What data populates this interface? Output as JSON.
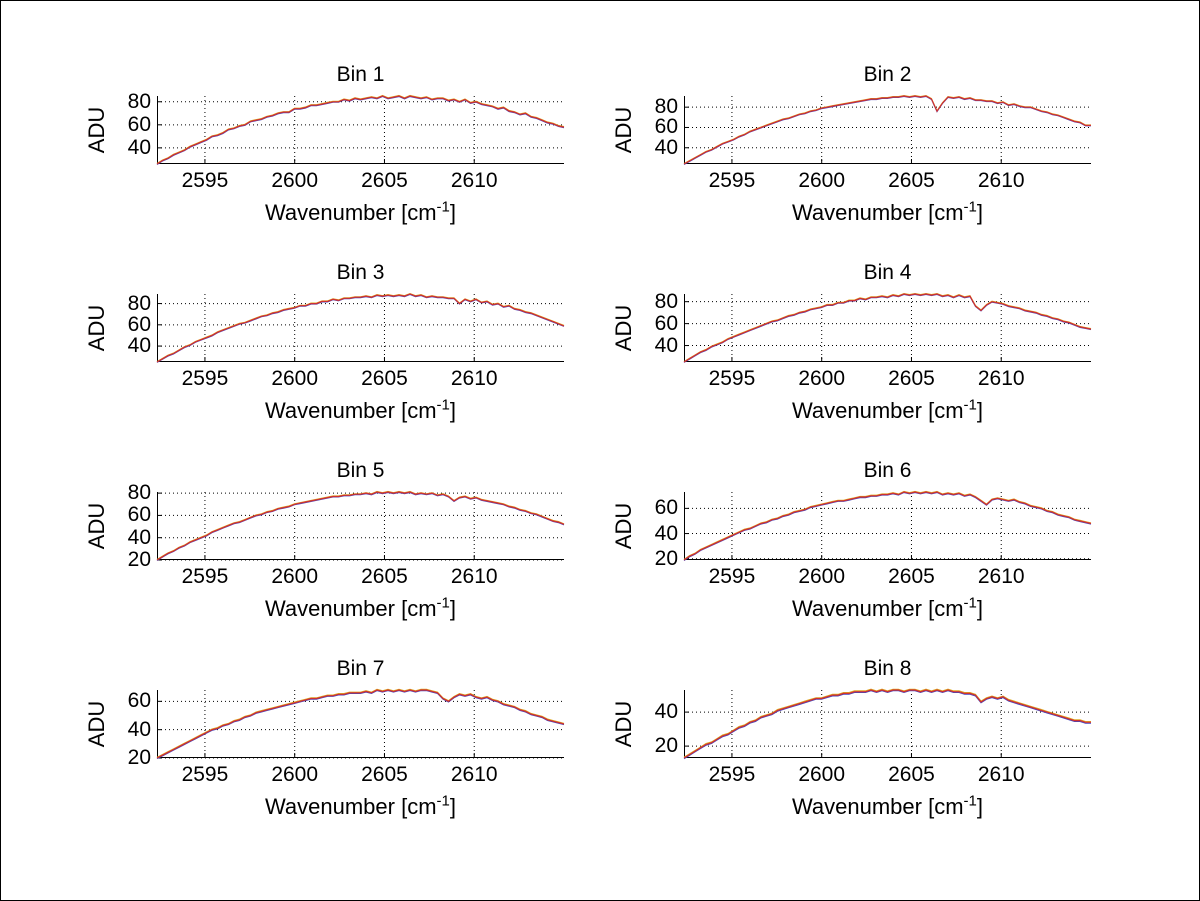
{
  "figure": {
    "ylabel": "ADU",
    "xlabel_base": "Wavenumber [cm",
    "xlabel_exp": "-1",
    "xlabel_end": "]",
    "line_color": "#d03030",
    "underlay_color_yellow": "#ddaa22",
    "underlay_color_blue": "#4444bb",
    "axis_color": "#000000",
    "grid_color": "#000000",
    "background": "#ffffff"
  },
  "chart_data": [
    {
      "type": "line",
      "title": "Bin 1",
      "ylabel": "ADU",
      "xlabel": "Wavenumber [cm-1]",
      "xlim": [
        2592.33,
        2615.0
      ],
      "ylim": [
        26,
        85
      ],
      "xticks": [
        2595,
        2600,
        2605,
        2610
      ],
      "yticks": [
        40,
        60,
        80
      ],
      "x_start": 2592.33,
      "x_end": 2615.0,
      "n_points": 75,
      "grid": true,
      "values": [
        26,
        29,
        31,
        34,
        36,
        38,
        41,
        43,
        45,
        47,
        50,
        51,
        53,
        56,
        57,
        59,
        60,
        63,
        64,
        65,
        67,
        68,
        70,
        71,
        71,
        74,
        74,
        75,
        77,
        77,
        78,
        79,
        80,
        80,
        82,
        81,
        83,
        82,
        83,
        84,
        83,
        85,
        83,
        84,
        85,
        83,
        85,
        84,
        83,
        84,
        82,
        83,
        83,
        81,
        82,
        80,
        82,
        79,
        80,
        78,
        77,
        76,
        74,
        75,
        72,
        71,
        69,
        70,
        67,
        66,
        64,
        62,
        61,
        59,
        58
      ]
    },
    {
      "type": "line",
      "title": "Bin 2",
      "ylabel": "ADU",
      "xlabel": "Wavenumber [cm-1]",
      "xlim": [
        2592.33,
        2615.0
      ],
      "ylim": [
        24,
        91
      ],
      "xticks": [
        2595,
        2600,
        2605,
        2610
      ],
      "yticks": [
        40,
        60,
        80
      ],
      "x_start": 2592.33,
      "x_end": 2615.0,
      "n_points": 75,
      "grid": true,
      "values": [
        24,
        27,
        30,
        33,
        36,
        38,
        41,
        44,
        46,
        48,
        51,
        53,
        56,
        58,
        60,
        62,
        64,
        66,
        68,
        69,
        71,
        73,
        74,
        76,
        77,
        79,
        80,
        81,
        82,
        83,
        84,
        85,
        86,
        87,
        88,
        88,
        89,
        89,
        90,
        90,
        91,
        90,
        91,
        90,
        91,
        88,
        76,
        84,
        90,
        89,
        90,
        88,
        89,
        87,
        87,
        86,
        86,
        84,
        85,
        82,
        83,
        81,
        80,
        80,
        78,
        76,
        75,
        73,
        72,
        70,
        68,
        66,
        65,
        62,
        62
      ]
    },
    {
      "type": "line",
      "title": "Bin 3",
      "ylabel": "ADU",
      "xlabel": "Wavenumber [cm-1]",
      "xlim": [
        2592.33,
        2615.0
      ],
      "ylim": [
        25,
        89
      ],
      "xticks": [
        2595,
        2600,
        2605,
        2610
      ],
      "yticks": [
        40,
        60,
        80
      ],
      "x_start": 2592.33,
      "x_end": 2615.0,
      "n_points": 75,
      "grid": true,
      "values": [
        25,
        28,
        31,
        33,
        36,
        39,
        41,
        44,
        46,
        48,
        50,
        53,
        55,
        57,
        59,
        61,
        62,
        64,
        66,
        68,
        69,
        71,
        72,
        74,
        75,
        76,
        78,
        78,
        80,
        80,
        82,
        82,
        84,
        83,
        85,
        85,
        86,
        86,
        87,
        86,
        88,
        87,
        88,
        87,
        88,
        87,
        89,
        87,
        88,
        86,
        87,
        86,
        86,
        85,
        85,
        80,
        84,
        82,
        84,
        81,
        82,
        79,
        80,
        77,
        78,
        75,
        74,
        72,
        71,
        69,
        67,
        65,
        63,
        61,
        59
      ]
    },
    {
      "type": "line",
      "title": "Bin 4",
      "ylabel": "ADU",
      "xlabel": "Wavenumber [cm-1]",
      "xlim": [
        2592.33,
        2615.0
      ],
      "ylim": [
        25,
        87
      ],
      "xticks": [
        2595,
        2600,
        2605,
        2610
      ],
      "yticks": [
        40,
        60,
        80
      ],
      "x_start": 2592.33,
      "x_end": 2615.0,
      "n_points": 75,
      "grid": true,
      "values": [
        25,
        28,
        31,
        34,
        36,
        39,
        41,
        43,
        46,
        48,
        50,
        52,
        54,
        56,
        58,
        60,
        62,
        63,
        65,
        67,
        68,
        70,
        71,
        73,
        74,
        75,
        77,
        77,
        79,
        79,
        81,
        81,
        83,
        82,
        84,
        84,
        85,
        84,
        86,
        85,
        87,
        86,
        87,
        86,
        87,
        86,
        87,
        85,
        86,
        84,
        86,
        84,
        85,
        76,
        72,
        77,
        80,
        79,
        78,
        76,
        75,
        74,
        72,
        71,
        70,
        68,
        67,
        65,
        64,
        62,
        61,
        59,
        57,
        56,
        55
      ]
    },
    {
      "type": "line",
      "title": "Bin 5",
      "ylabel": "ADU",
      "xlabel": "Wavenumber [cm-1]",
      "xlim": [
        2592.33,
        2615.0
      ],
      "ylim": [
        20,
        81
      ],
      "xticks": [
        2595,
        2600,
        2605,
        2610
      ],
      "yticks": [
        20,
        40,
        60,
        80
      ],
      "x_start": 2592.33,
      "x_end": 2615.0,
      "n_points": 75,
      "grid": true,
      "values": [
        20,
        23,
        26,
        28,
        31,
        33,
        36,
        38,
        40,
        42,
        45,
        47,
        49,
        51,
        53,
        54,
        56,
        58,
        60,
        61,
        63,
        64,
        66,
        67,
        68,
        70,
        71,
        72,
        73,
        74,
        75,
        76,
        77,
        77,
        78,
        78,
        79,
        79,
        80,
        79,
        81,
        80,
        81,
        80,
        81,
        80,
        81,
        79,
        80,
        79,
        80,
        78,
        79,
        77,
        73,
        76,
        77,
        75,
        76,
        74,
        73,
        72,
        71,
        70,
        68,
        67,
        65,
        64,
        62,
        61,
        59,
        57,
        55,
        54,
        52
      ]
    },
    {
      "type": "line",
      "title": "Bin 6",
      "ylabel": "ADU",
      "xlabel": "Wavenumber [cm-1]",
      "xlim": [
        2592.33,
        2615.0
      ],
      "ylim": [
        19,
        73
      ],
      "xticks": [
        2595,
        2600,
        2605,
        2610
      ],
      "yticks": [
        20,
        40,
        60
      ],
      "x_start": 2592.33,
      "x_end": 2615.0,
      "n_points": 75,
      "grid": true,
      "values": [
        19,
        22,
        24,
        27,
        29,
        31,
        33,
        35,
        37,
        39,
        41,
        43,
        44,
        46,
        48,
        49,
        51,
        52,
        54,
        55,
        57,
        58,
        59,
        61,
        62,
        63,
        64,
        65,
        66,
        66,
        67,
        68,
        69,
        69,
        70,
        70,
        71,
        71,
        72,
        71,
        73,
        72,
        73,
        72,
        73,
        72,
        73,
        71,
        72,
        71,
        72,
        70,
        71,
        69,
        66,
        63,
        67,
        68,
        67,
        66,
        67,
        65,
        64,
        62,
        61,
        60,
        58,
        57,
        55,
        54,
        53,
        51,
        50,
        49,
        48
      ]
    },
    {
      "type": "line",
      "title": "Bin 7",
      "ylabel": "ADU",
      "xlabel": "Wavenumber [cm-1]",
      "xlim": [
        2592.33,
        2615.0
      ],
      "ylim": [
        20,
        68
      ],
      "xticks": [
        2595,
        2600,
        2605,
        2610
      ],
      "yticks": [
        20,
        40,
        60
      ],
      "x_start": 2592.33,
      "x_end": 2615.0,
      "n_points": 75,
      "grid": true,
      "values": [
        20,
        22,
        24,
        26,
        28,
        30,
        32,
        34,
        36,
        38,
        40,
        41,
        43,
        44,
        46,
        47,
        49,
        50,
        52,
        53,
        54,
        55,
        56,
        57,
        58,
        59,
        60,
        61,
        62,
        62,
        63,
        64,
        64,
        65,
        65,
        66,
        66,
        66,
        67,
        66,
        68,
        67,
        68,
        67,
        68,
        67,
        68,
        67,
        68,
        68,
        67,
        66,
        62,
        60,
        63,
        65,
        64,
        65,
        63,
        62,
        63,
        61,
        60,
        58,
        57,
        56,
        54,
        53,
        51,
        50,
        49,
        47,
        46,
        45,
        44
      ]
    },
    {
      "type": "line",
      "title": "Bin 8",
      "ylabel": "ADU",
      "xlabel": "Wavenumber [cm-1]",
      "xlim": [
        2592.33,
        2615.0
      ],
      "ylim": [
        13,
        53
      ],
      "xticks": [
        2595,
        2600,
        2605,
        2610
      ],
      "yticks": [
        20,
        40
      ],
      "x_start": 2592.33,
      "x_end": 2615.0,
      "n_points": 75,
      "grid": true,
      "values": [
        13,
        15,
        17,
        19,
        21,
        22,
        24,
        26,
        27,
        29,
        31,
        32,
        34,
        35,
        37,
        38,
        39,
        41,
        42,
        43,
        44,
        45,
        46,
        47,
        48,
        48,
        49,
        50,
        50,
        51,
        51,
        52,
        52,
        52,
        53,
        52,
        53,
        52,
        53,
        53,
        52,
        53,
        53,
        52,
        53,
        52,
        53,
        52,
        53,
        52,
        52,
        51,
        51,
        50,
        46,
        48,
        49,
        48,
        49,
        47,
        46,
        45,
        44,
        43,
        42,
        41,
        40,
        39,
        38,
        37,
        36,
        35,
        35,
        34,
        34
      ]
    }
  ]
}
